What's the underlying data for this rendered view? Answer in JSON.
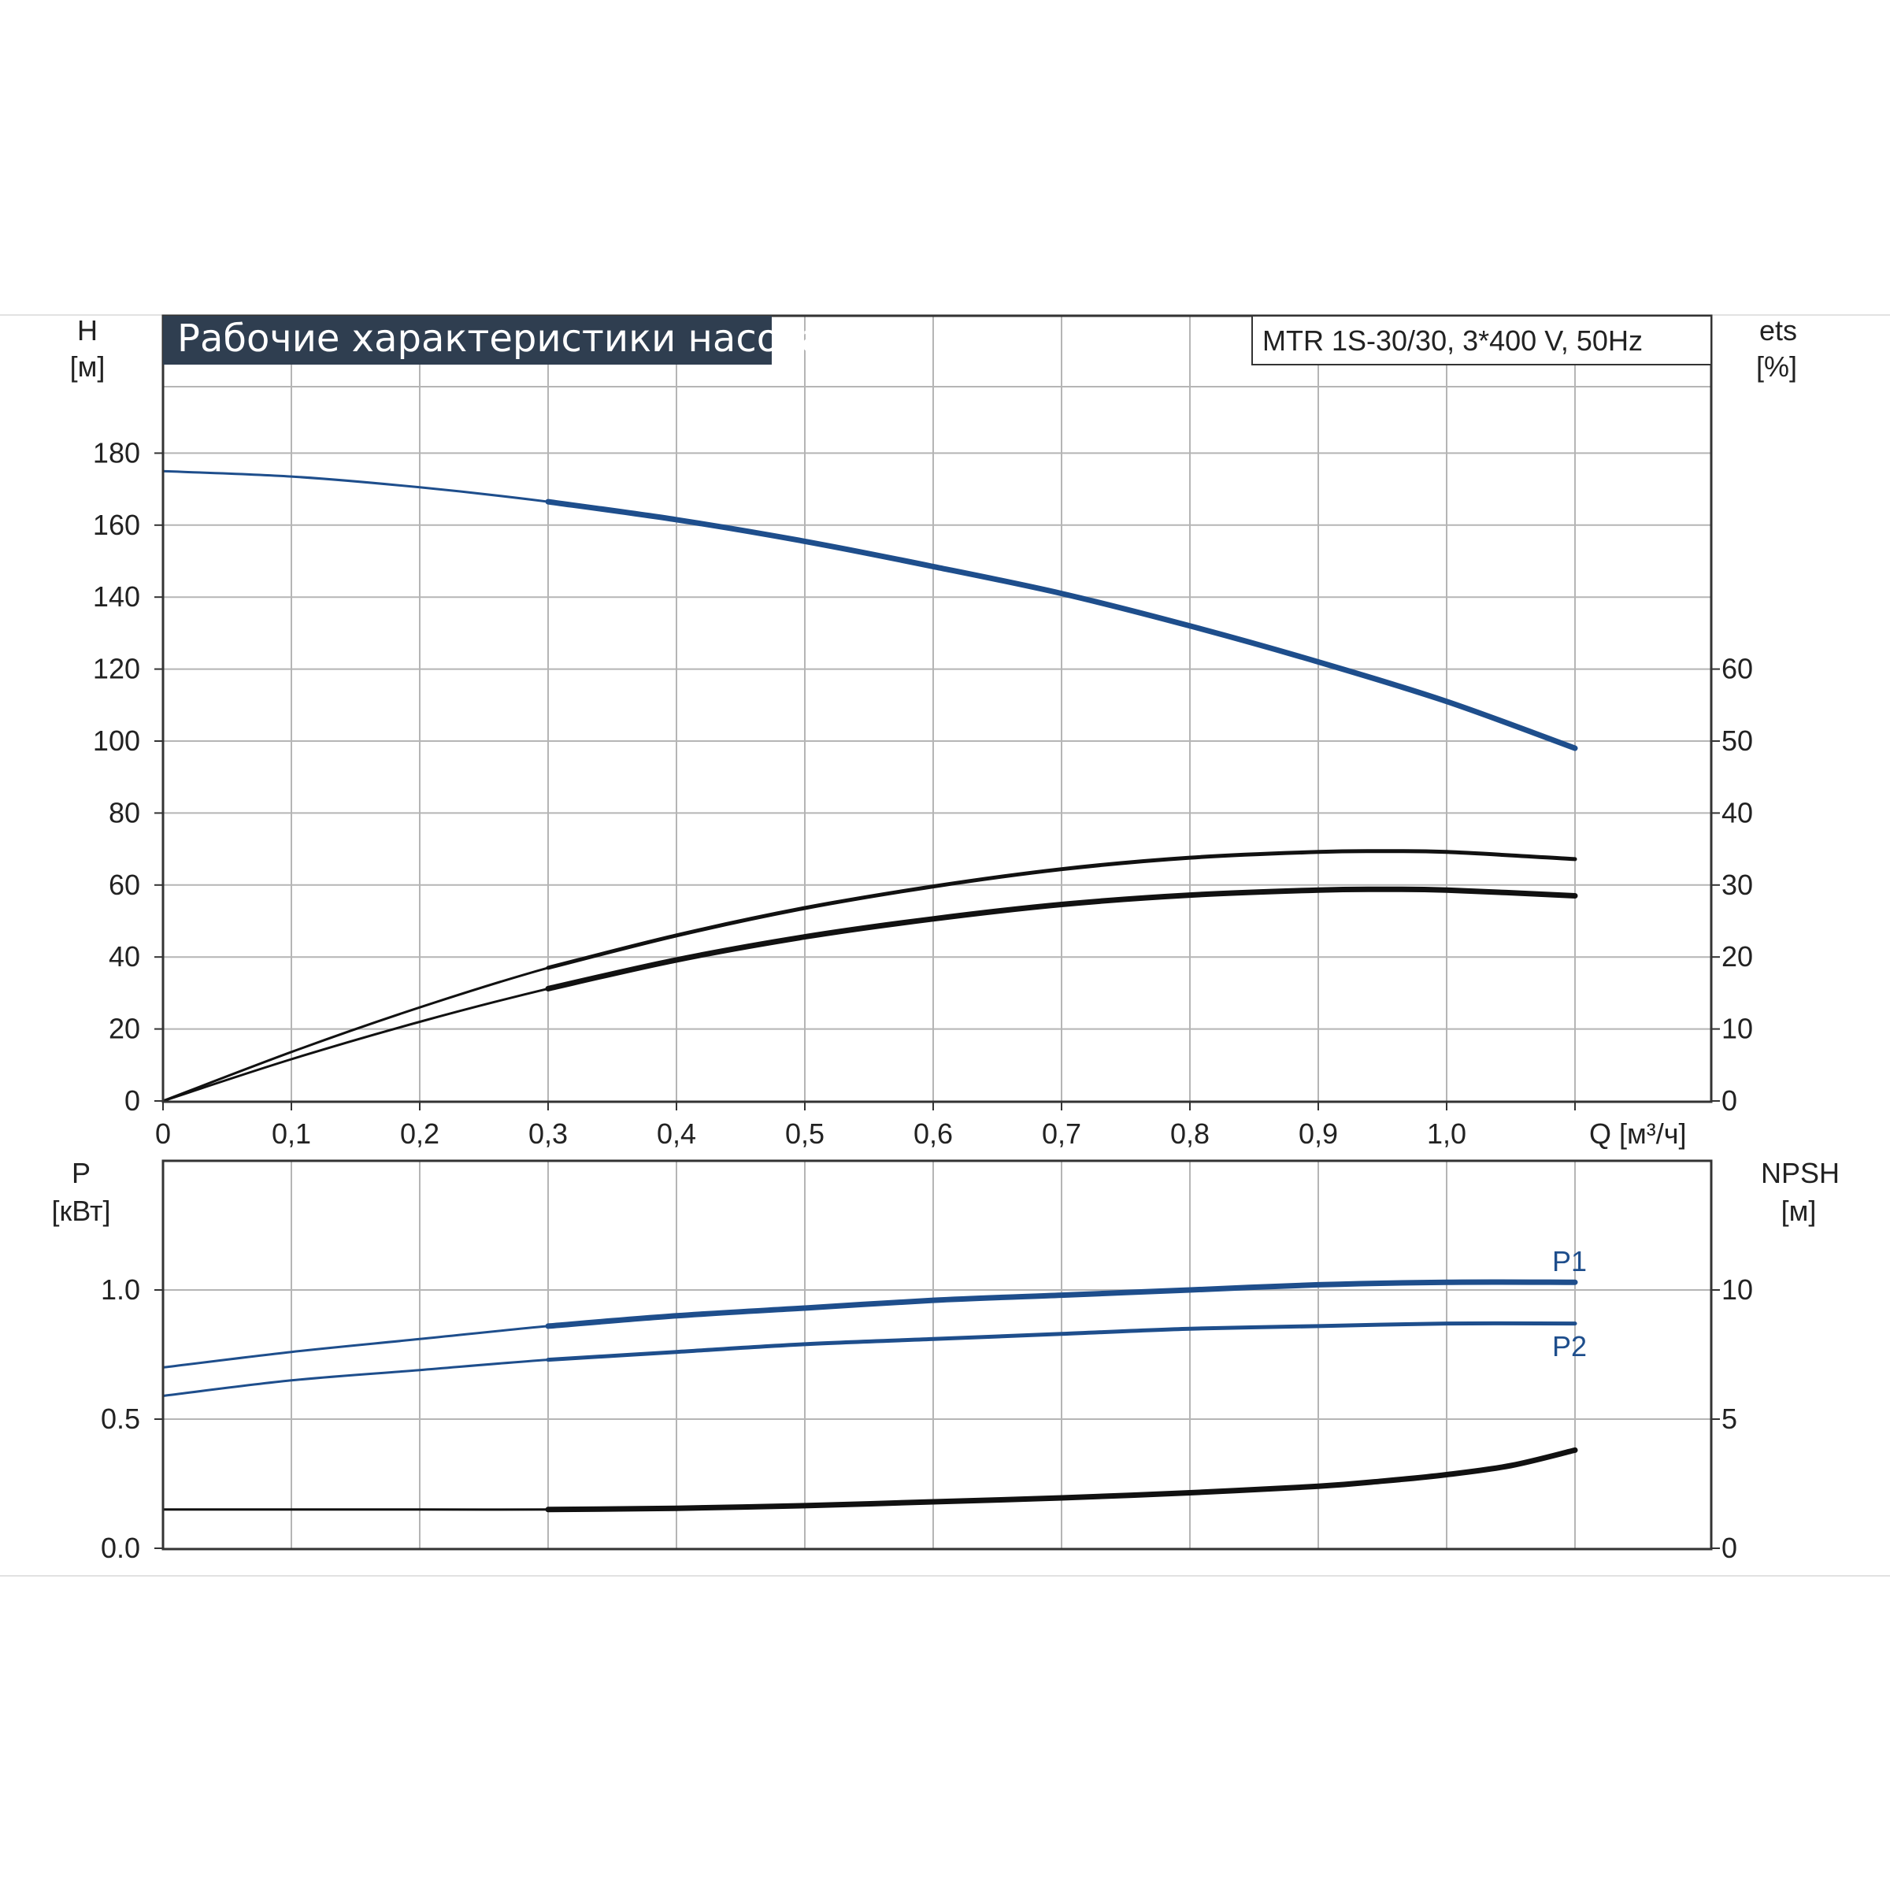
{
  "title": "Рабочие характеристики насоса",
  "model": "MTR 1S-30/30, 3*400 V, 50Hz",
  "colors": {
    "accent_blue": "#1e4e8c",
    "curve_black": "#111111",
    "grid": "#b5b5b5",
    "frame": "#333333",
    "title_bg": "#2f3e50"
  },
  "chart_data": [
    {
      "type": "line",
      "x_unit_label": "Q [м³/ч]",
      "x_ticks": [
        "0",
        "0,1",
        "0,2",
        "0,3",
        "0,4",
        "0,5",
        "0,6",
        "0,7",
        "0,8",
        "0,9",
        "1,0"
      ],
      "xlim": [
        0,
        1.2
      ],
      "left_axis": {
        "label": "H",
        "unit": "[м]",
        "ticks": [
          "0",
          "20",
          "40",
          "60",
          "80",
          "100",
          "120",
          "140",
          "160",
          "180"
        ],
        "ylim": [
          0,
          200
        ]
      },
      "right_axis": {
        "label": "ets",
        "unit": "[%]",
        "ticks": [
          "0",
          "10",
          "20",
          "30",
          "40",
          "50",
          "60"
        ],
        "ylim": [
          0,
          100
        ]
      },
      "grid": true,
      "series": [
        {
          "axis": "left",
          "color": "#1e4e8c",
          "x": [
            0,
            0.1,
            0.2,
            0.3,
            0.4,
            0.5,
            0.6,
            0.7,
            0.8,
            0.9,
            1.0,
            1.1
          ],
          "y": [
            175,
            173.5,
            170.5,
            166.5,
            161.5,
            155.5,
            148.5,
            141,
            132,
            122,
            111,
            98
          ]
        },
        {
          "axis": "right",
          "color": "#111111",
          "x": [
            0,
            0.1,
            0.2,
            0.3,
            0.4,
            0.5,
            0.6,
            0.7,
            0.8,
            0.9,
            0.95,
            1.0,
            1.1
          ],
          "y": [
            0,
            6.8,
            13,
            18.5,
            23,
            26.8,
            29.8,
            32.2,
            33.8,
            34.6,
            34.7,
            34.6,
            33.6
          ]
        },
        {
          "axis": "right",
          "color": "#111111",
          "x": [
            0,
            0.1,
            0.2,
            0.3,
            0.4,
            0.5,
            0.6,
            0.7,
            0.8,
            0.9,
            0.95,
            1.0,
            1.1
          ],
          "y": [
            0,
            5.8,
            11,
            15.6,
            19.6,
            22.8,
            25.3,
            27.3,
            28.6,
            29.3,
            29.4,
            29.3,
            28.5
          ]
        }
      ]
    },
    {
      "type": "line",
      "left_axis": {
        "label": "P",
        "unit": "[кВт]",
        "ticks": [
          "0.0",
          "0.5",
          "1.0"
        ],
        "ylim": [
          0,
          1.5
        ]
      },
      "right_axis": {
        "label": "NPSH",
        "unit": "[м]",
        "ticks": [
          "0",
          "5",
          "10"
        ],
        "ylim": [
          0,
          15
        ]
      },
      "xlim": [
        0,
        1.2
      ],
      "grid": true,
      "series": [
        {
          "name": "P1",
          "axis": "left",
          "color": "#1e4e8c",
          "x": [
            0,
            0.1,
            0.2,
            0.3,
            0.4,
            0.5,
            0.6,
            0.7,
            0.8,
            0.9,
            1.0,
            1.1
          ],
          "y": [
            0.7,
            0.76,
            0.81,
            0.86,
            0.9,
            0.93,
            0.96,
            0.98,
            1.0,
            1.02,
            1.03,
            1.03
          ]
        },
        {
          "name": "P2",
          "axis": "left",
          "color": "#1e4e8c",
          "x": [
            0,
            0.1,
            0.2,
            0.3,
            0.4,
            0.5,
            0.6,
            0.7,
            0.8,
            0.9,
            1.0,
            1.1
          ],
          "y": [
            0.59,
            0.65,
            0.69,
            0.73,
            0.76,
            0.79,
            0.81,
            0.83,
            0.85,
            0.86,
            0.87,
            0.87
          ]
        },
        {
          "axis": "right",
          "color": "#111111",
          "x": [
            0,
            0.1,
            0.2,
            0.3,
            0.4,
            0.5,
            0.6,
            0.7,
            0.8,
            0.9,
            0.95,
            1.0,
            1.05,
            1.1
          ],
          "y": [
            1.5,
            1.5,
            1.5,
            1.5,
            1.55,
            1.65,
            1.8,
            1.95,
            2.15,
            2.4,
            2.6,
            2.85,
            3.2,
            3.8
          ]
        }
      ]
    }
  ]
}
